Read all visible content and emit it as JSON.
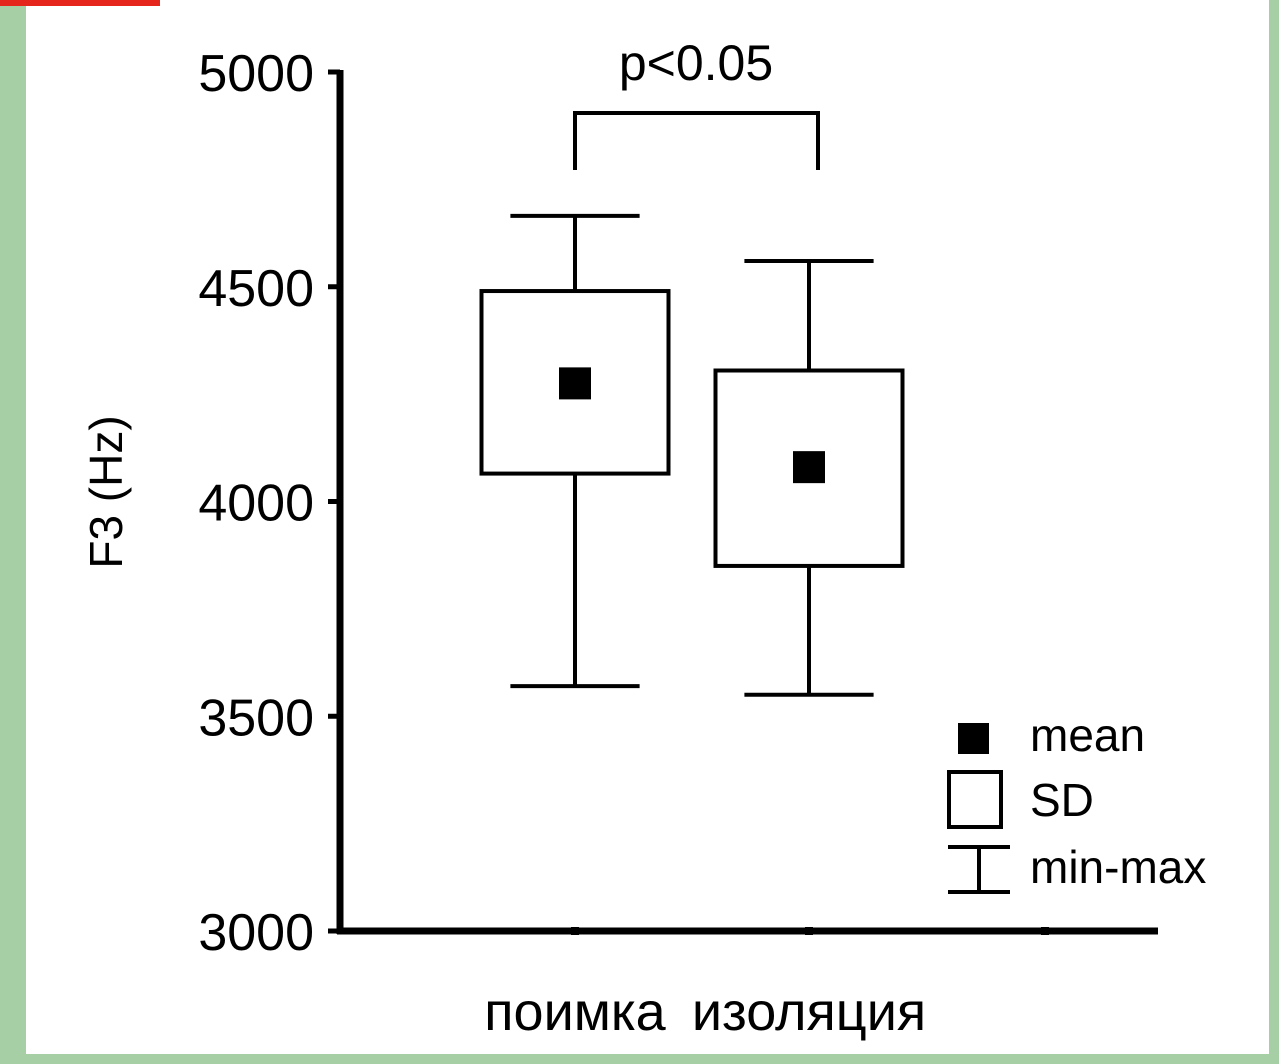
{
  "chart_data": {
    "type": "boxplot",
    "ylabel": "F3 (Hz)",
    "xlabel": "",
    "title": "",
    "ylim": [
      3000,
      5000
    ],
    "yticks": [
      5000,
      4500,
      4000,
      3500,
      3000
    ],
    "categories": [
      "поимка",
      "изоляция"
    ],
    "groups": [
      {
        "category": "поимка",
        "mean": 4275,
        "sd_low": 4065,
        "sd_high": 4490,
        "min": 3570,
        "max": 4665
      },
      {
        "category": "изоляция",
        "mean": 4080,
        "sd_low": 3850,
        "sd_high": 4305,
        "min": 3550,
        "max": 4560
      }
    ],
    "annotation": {
      "text": "p<0.05",
      "between": [
        "поимка",
        "изоляция"
      ]
    },
    "legend": {
      "placement": "bottom-right",
      "items": [
        {
          "symbol": "filled-square",
          "label": "mean"
        },
        {
          "symbol": "open-square",
          "label": "SD"
        },
        {
          "symbol": "whisker",
          "label": "min-max"
        }
      ]
    },
    "colors": {
      "background": "#a7cfa6",
      "plot": "#ffffff",
      "ink": "#000000",
      "accent": "#e4261c"
    }
  }
}
